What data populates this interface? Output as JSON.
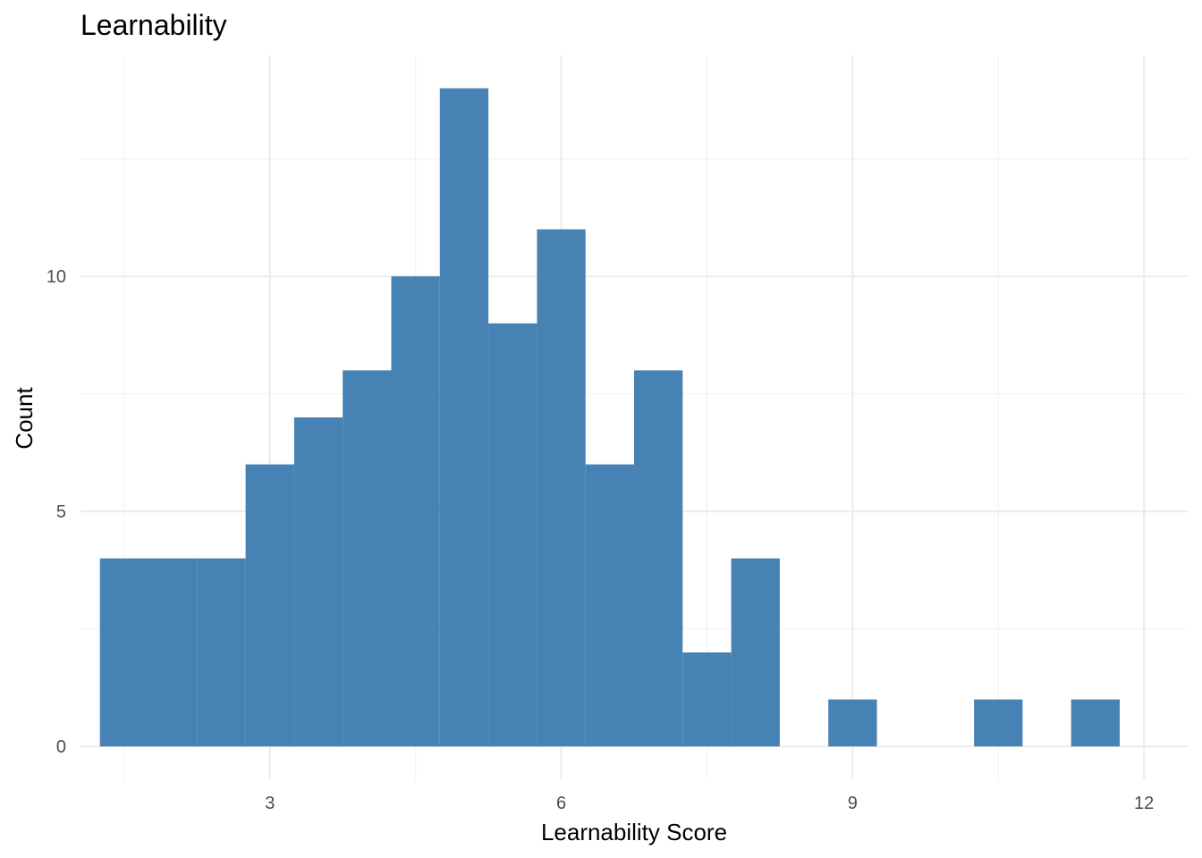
{
  "chart_data": {
    "type": "bar",
    "title": "Learnability",
    "xlabel": "Learnability Score",
    "ylabel": "Count",
    "xlim": [
      1.05,
      12.45
    ],
    "ylim": [
      -0.7,
      14.7
    ],
    "bin_width": 0.5,
    "x_ticks": [
      3,
      6,
      9,
      12
    ],
    "y_ticks": [
      0,
      5,
      10
    ],
    "grid": true,
    "bar_color": "#4682b4",
    "bins": [
      {
        "start": 1.25,
        "end": 1.75,
        "count": 4
      },
      {
        "start": 1.75,
        "end": 2.25,
        "count": 4
      },
      {
        "start": 2.25,
        "end": 2.75,
        "count": 4
      },
      {
        "start": 2.75,
        "end": 3.25,
        "count": 6
      },
      {
        "start": 3.25,
        "end": 3.75,
        "count": 7
      },
      {
        "start": 3.75,
        "end": 4.25,
        "count": 8
      },
      {
        "start": 4.25,
        "end": 4.75,
        "count": 10
      },
      {
        "start": 4.75,
        "end": 5.25,
        "count": 14
      },
      {
        "start": 5.25,
        "end": 5.75,
        "count": 9
      },
      {
        "start": 5.75,
        "end": 6.25,
        "count": 11
      },
      {
        "start": 6.25,
        "end": 6.75,
        "count": 6
      },
      {
        "start": 6.75,
        "end": 7.25,
        "count": 8
      },
      {
        "start": 7.25,
        "end": 7.75,
        "count": 2
      },
      {
        "start": 7.75,
        "end": 8.25,
        "count": 4
      },
      {
        "start": 8.25,
        "end": 8.75,
        "count": 0
      },
      {
        "start": 8.75,
        "end": 9.25,
        "count": 1
      },
      {
        "start": 9.25,
        "end": 9.75,
        "count": 0
      },
      {
        "start": 9.75,
        "end": 10.25,
        "count": 0
      },
      {
        "start": 10.25,
        "end": 10.75,
        "count": 1
      },
      {
        "start": 10.75,
        "end": 11.25,
        "count": 0
      },
      {
        "start": 11.25,
        "end": 11.75,
        "count": 1
      }
    ]
  }
}
